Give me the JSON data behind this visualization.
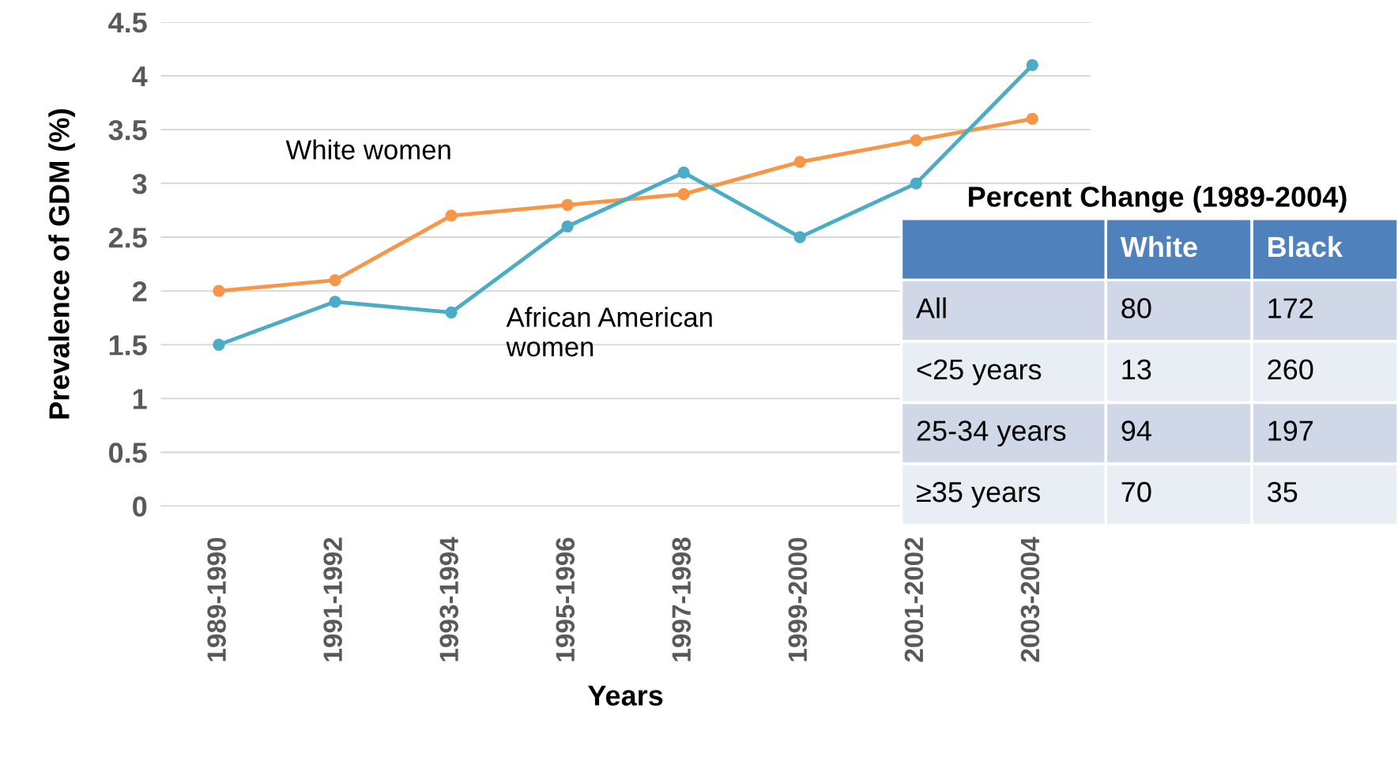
{
  "chart_data": [
    {
      "type": "line",
      "xlabel": "Years",
      "ylabel": "Prevalence of GDM (%)",
      "categories": [
        "1989-1990",
        "1991-1992",
        "1993-1994",
        "1995-1996",
        "1997-1998",
        "1999-2000",
        "2001-2002",
        "2003-2004"
      ],
      "series": [
        {
          "name": "White women",
          "color": "#f79646",
          "values": [
            2.0,
            2.1,
            2.7,
            2.8,
            2.9,
            3.2,
            3.4,
            3.6
          ]
        },
        {
          "name": "African American\nwomen",
          "color": "#4bacc6",
          "values": [
            1.5,
            1.9,
            1.8,
            2.6,
            3.1,
            2.5,
            3.0,
            4.1
          ]
        }
      ],
      "ylim": [
        0,
        4.5
      ],
      "yticks": [
        0,
        0.5,
        1,
        1.5,
        2,
        2.5,
        3,
        3.5,
        4,
        4.5
      ],
      "grid": "y",
      "marker": "circle",
      "line_style": "solid",
      "legend": false
    },
    {
      "type": "heatmap",
      "title": "Percent Change (1989-2004)",
      "categories": [
        "White",
        "Black"
      ],
      "y_categories": [
        "All",
        "<25 years",
        "25-34 years",
        "≥35 years"
      ],
      "cells": [
        [
          80,
          172
        ],
        [
          13,
          260
        ],
        [
          94,
          197
        ],
        [
          70,
          35
        ]
      ],
      "data_labels": true
    }
  ]
}
